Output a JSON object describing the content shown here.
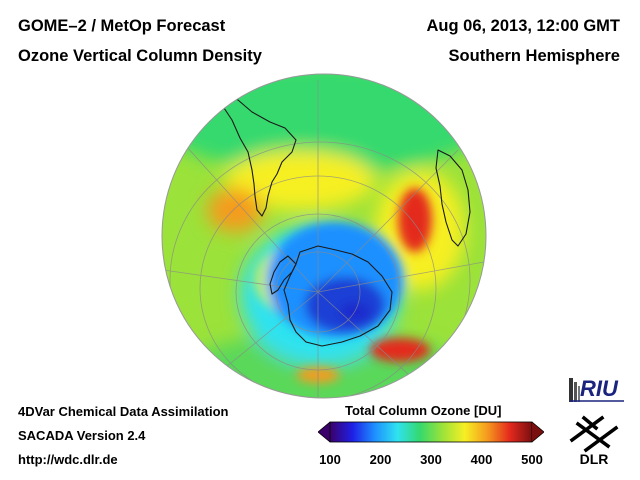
{
  "header": {
    "title_left_1": "GOME–2 / MetOp Forecast",
    "title_left_2": "Ozone Vertical Column Density",
    "title_right_1": "Aug 06, 2013, 12:00 GMT",
    "title_right_2": "Southern Hemisphere"
  },
  "footer": {
    "line1": "4DVar Chemical Data Assimilation",
    "line2": "SACADA Version 2.4",
    "line3": "http://wdc.dlr.de"
  },
  "colorbar": {
    "title": "Total Column Ozone [DU]",
    "min": 100,
    "max": 500,
    "ticks": [
      {
        "value": 100,
        "label": "100"
      },
      {
        "value": 200,
        "label": "200"
      },
      {
        "value": 300,
        "label": "300"
      },
      {
        "value": 400,
        "label": "400"
      },
      {
        "value": 500,
        "label": "500"
      }
    ],
    "colors": [
      "#3b006b",
      "#1f1fe6",
      "#1e90ff",
      "#2fe2f0",
      "#34d96e",
      "#9be23a",
      "#f6ef24",
      "#f59b1e",
      "#e42a1e",
      "#7a0f0f"
    ]
  },
  "map": {
    "projection": "orthographic-south-polar",
    "background_value": 290,
    "features": [
      {
        "region": "antarctic-ozone-hole",
        "value": 160
      },
      {
        "region": "polar-vortex-ring",
        "value": 230
      },
      {
        "region": "south-atlantic-maximum",
        "value": 380
      },
      {
        "region": "indian-ocean-maximum",
        "value": 400
      },
      {
        "region": "south-pacific-maximum",
        "value": 390
      }
    ],
    "colors": {
      "land_outline": "#1a1a1a",
      "graticule": "#8a8a8a"
    }
  },
  "logos": {
    "riu": "RIU",
    "dlr": "DLR"
  }
}
